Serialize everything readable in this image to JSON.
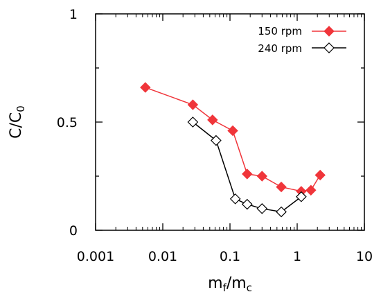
{
  "chart_data": {
    "type": "scatter",
    "xscale": "log",
    "xlim": [
      0.001,
      10
    ],
    "ylim": [
      0,
      1
    ],
    "xticks": [
      "0.001",
      "0.01",
      "0.1",
      "1",
      "10"
    ],
    "yticks": [
      "0",
      "0.5",
      "1"
    ],
    "xlabel": {
      "main": "m",
      "sub": "f",
      "sep": "/m",
      "sub2": "c"
    },
    "ylabel": {
      "main": "C/C",
      "sub": "0"
    },
    "legend_position": "top-right",
    "series": [
      {
        "name": "150 rpm",
        "color": "#f0353a",
        "marker": "filled-diamond",
        "x": [
          0.0055,
          0.028,
          0.055,
          0.11,
          0.18,
          0.3,
          0.58,
          1.15,
          1.6,
          2.2
        ],
        "y": [
          0.66,
          0.58,
          0.51,
          0.46,
          0.26,
          0.25,
          0.2,
          0.18,
          0.185,
          0.255
        ]
      },
      {
        "name": "240 rpm",
        "color": "#000000",
        "marker": "open-diamond",
        "x": [
          0.028,
          0.062,
          0.12,
          0.18,
          0.3,
          0.58,
          1.15
        ],
        "y": [
          0.5,
          0.415,
          0.145,
          0.12,
          0.1,
          0.085,
          0.155
        ]
      }
    ]
  }
}
